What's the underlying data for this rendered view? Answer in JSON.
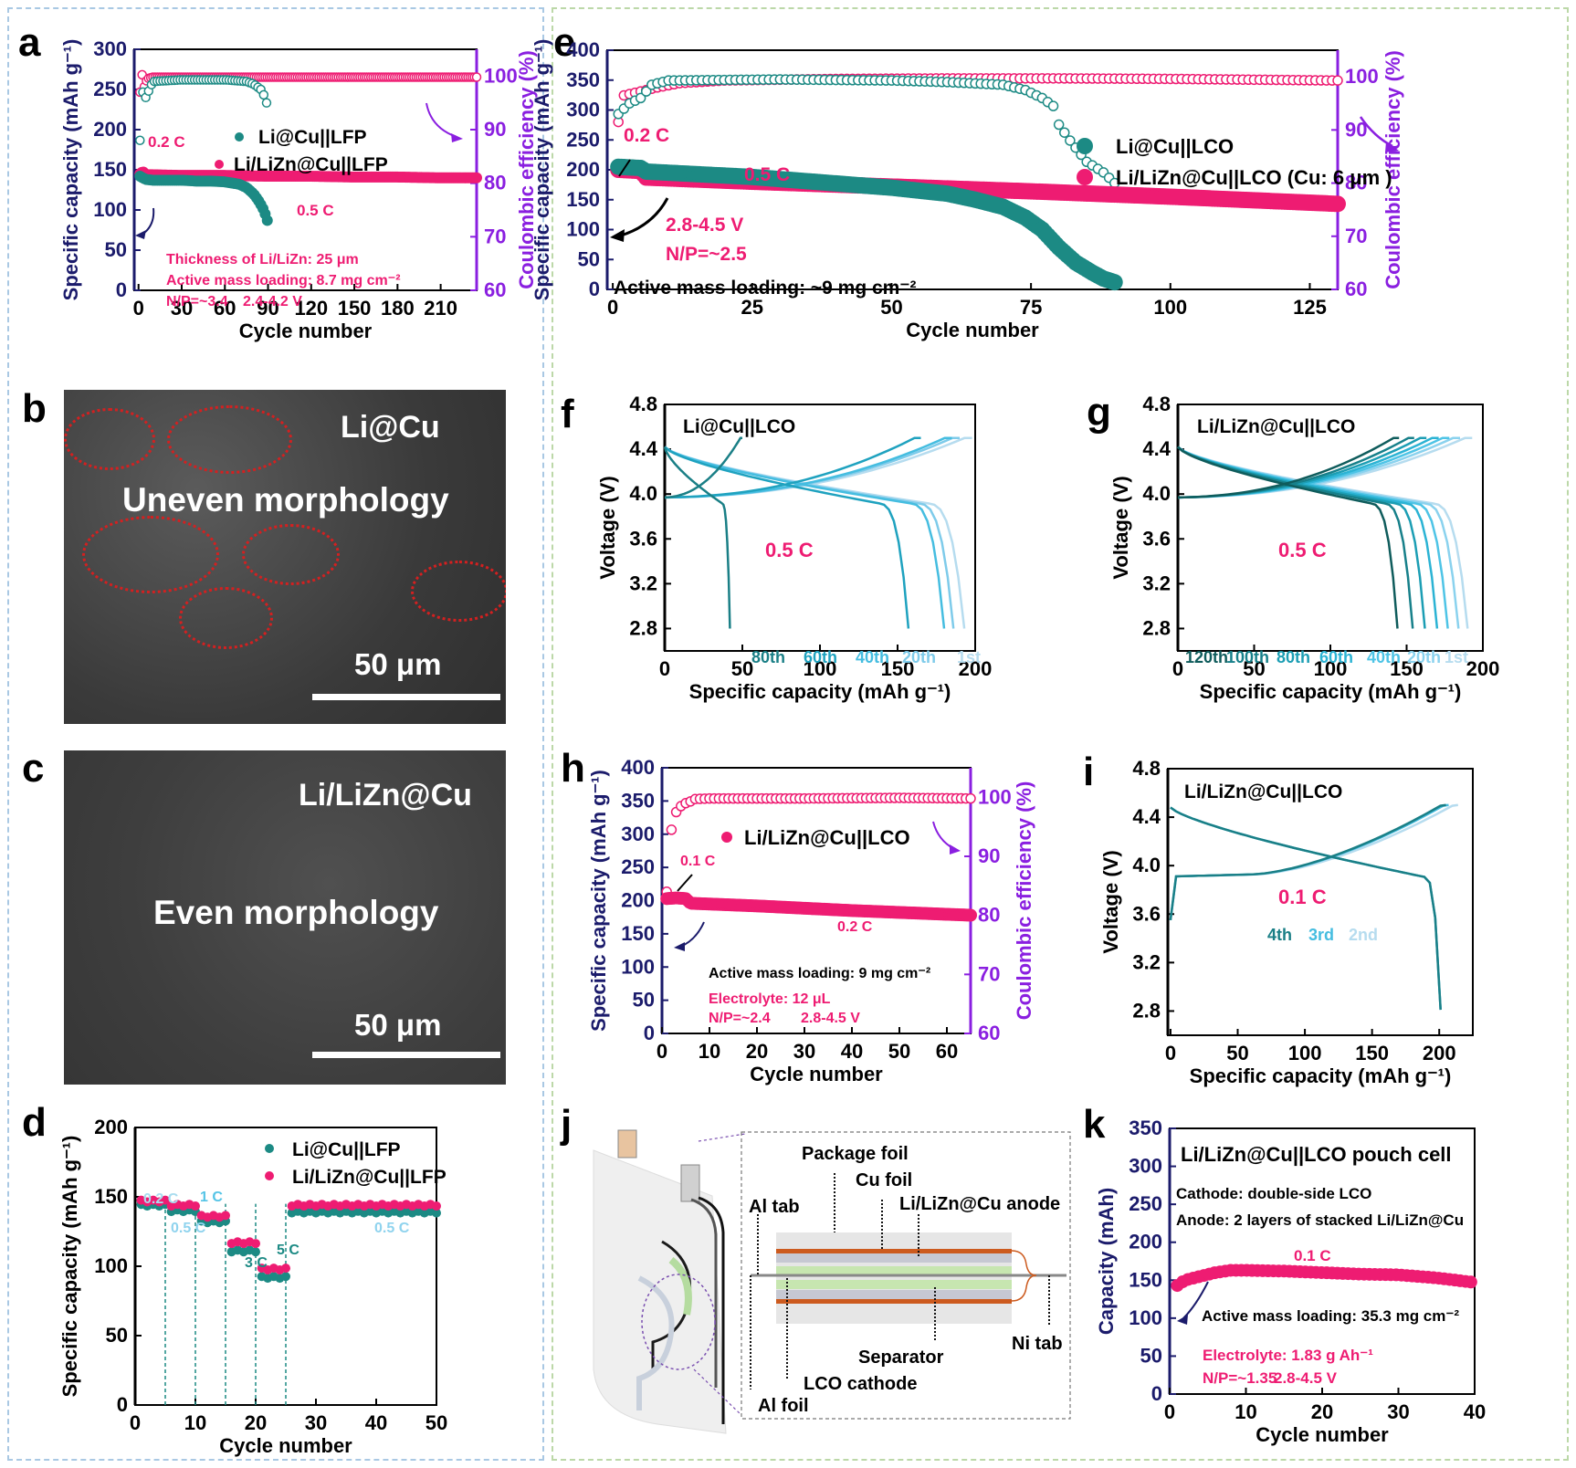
{
  "figure": {
    "panel_labels": {
      "a": "a",
      "b": "b",
      "c": "c",
      "d": "d",
      "e": "e",
      "f": "f",
      "g": "g",
      "h": "h",
      "i": "i",
      "j": "j",
      "k": "k"
    },
    "colors": {
      "navy": "#1b1b6b",
      "purple": "#8a1fe0",
      "pink": "#ee1c72",
      "teal": "#1c8a84",
      "black": "#000000",
      "red_dotted": "#d42020",
      "light_blue": "#8fd3ee"
    }
  },
  "panel_b": {
    "title": "Li@Cu",
    "caption": "Uneven morphology",
    "scale_label": "50 μm"
  },
  "panel_c": {
    "title": "Li/LiZn@Cu",
    "caption": "Even morphology",
    "scale_label": "50 μm"
  },
  "panel_j": {
    "labels": {
      "package_foil": "Package foil",
      "cu_foil": "Cu foil",
      "al_tab": "Al tab",
      "anode": "Li/LiZn@Cu anode",
      "separator": "Separator",
      "ni_tab": "Ni tab",
      "lco_cathode": "LCO cathode",
      "al_foil": "Al foil"
    }
  },
  "chart_data": [
    {
      "id": "a",
      "type": "scatter",
      "xlabel": "Cycle number",
      "ylabel": "Specific capacity (mAh g⁻¹)",
      "y2label": "Coulombic efficiency (%)",
      "xlim": [
        -3,
        235
      ],
      "ylim": [
        0,
        300
      ],
      "y2lim": [
        60,
        105
      ],
      "xticks": [
        0,
        30,
        60,
        90,
        120,
        150,
        180,
        210
      ],
      "yticks": [
        0,
        50,
        100,
        150,
        200,
        250,
        300
      ],
      "y2ticks": [
        60,
        70,
        80,
        90,
        100
      ],
      "legend": [
        "Li@Cu||LFP",
        "Li/LiZn@Cu||LFP"
      ],
      "legend_position": "center-right",
      "annotations": [
        "0.2 C",
        "0.5 C",
        "Thickness of Li/LiZn: 25 μm",
        "Active mass loading: 8.7 mg cm⁻²",
        "N/P=~3.4",
        "2.4-4.2 V"
      ],
      "series": [
        {
          "name": "Li@Cu||LFP capacity",
          "color": "#1c8a84",
          "x": [
            1,
            3,
            5,
            10,
            20,
            30,
            40,
            50,
            60,
            70,
            75,
            80,
            84,
            87,
            89,
            90
          ],
          "values": [
            142,
            140,
            138,
            137,
            137,
            137,
            136,
            136,
            135,
            132,
            128,
            120,
            110,
            100,
            90,
            84
          ]
        },
        {
          "name": "Li/LiZn@Cu||LFP capacity",
          "color": "#ee1c72",
          "x": [
            1,
            3,
            5,
            30,
            60,
            90,
            120,
            150,
            180,
            210,
            235
          ],
          "values": [
            145,
            148,
            144,
            143,
            143,
            142,
            142,
            141,
            141,
            140,
            140
          ]
        },
        {
          "name": "Li@Cu||LFP CE",
          "color": "#1c8a84",
          "x": [
            1,
            3,
            5,
            10,
            30,
            60,
            75,
            80,
            85,
            88,
            90
          ],
          "values": [
            88,
            97,
            96,
            99,
            99.3,
            99.3,
            99,
            98.5,
            97.5,
            96,
            94
          ]
        },
        {
          "name": "Li/LiZn@Cu||LFP CE",
          "color": "#ee1c72",
          "x": [
            1,
            2,
            4,
            6,
            10,
            60,
            120,
            180,
            235
          ],
          "values": [
            97,
            101,
            98,
            99.5,
            99.8,
            99.8,
            99.8,
            99.8,
            99.8
          ]
        }
      ]
    },
    {
      "id": "d",
      "type": "scatter",
      "xlabel": "Cycle number",
      "ylabel": "Specific capacity (mAh g⁻¹)",
      "xlim": [
        0,
        50
      ],
      "ylim": [
        0,
        200
      ],
      "xticks": [
        0,
        10,
        20,
        30,
        40,
        50
      ],
      "yticks": [
        0,
        50,
        100,
        150,
        200
      ],
      "legend": [
        "Li@Cu||LFP",
        "Li/LiZn@Cu||LFP"
      ],
      "legend_position": "top-right",
      "rate_labels": [
        "0.2 C",
        "0.5 C",
        "1 C",
        "3 C",
        "5 C",
        "0.5 C"
      ],
      "rate_boundaries": [
        5,
        10,
        15,
        20,
        25
      ],
      "series": [
        {
          "name": "Li@Cu||LFP",
          "color": "#1c8a84",
          "segments": [
            [
              1,
              5,
              144
            ],
            [
              6,
              10,
              140
            ],
            [
              11,
              15,
              132
            ],
            [
              16,
              20,
              111
            ],
            [
              21,
              25,
              92
            ],
            [
              26,
              50,
              139
            ]
          ]
        },
        {
          "name": "Li/LiZn@Cu||LFP",
          "color": "#ee1c72",
          "segments": [
            [
              1,
              5,
              147
            ],
            [
              6,
              10,
              144
            ],
            [
              11,
              15,
              136
            ],
            [
              16,
              20,
              117
            ],
            [
              21,
              25,
              98
            ],
            [
              26,
              50,
              144
            ]
          ]
        }
      ]
    },
    {
      "id": "e",
      "type": "scatter",
      "xlabel": "Cycle number",
      "ylabel": "Specific capacity (mAh g⁻¹)",
      "y2label": "Coulombic efficiency (%)",
      "xlim": [
        -1,
        130
      ],
      "ylim": [
        0,
        400
      ],
      "y2lim": [
        60,
        105
      ],
      "xticks": [
        0,
        25,
        50,
        75,
        100,
        125
      ],
      "yticks": [
        0,
        50,
        100,
        150,
        200,
        250,
        300,
        350,
        400
      ],
      "y2ticks": [
        60,
        70,
        80,
        90,
        100
      ],
      "legend": [
        "Li@Cu||LCO",
        "Li/LiZn@Cu||LCO (Cu: 6 μm )"
      ],
      "legend_position": "center-right",
      "annotations": [
        "0.2 C",
        "0.5 C",
        "2.8-4.5 V",
        "N/P=~2.5",
        "Active mass loading: ~9 mg cm⁻²"
      ],
      "series": [
        {
          "name": "Li@Cu||LCO capacity",
          "color": "#1c8a84",
          "x": [
            1,
            5,
            6,
            25,
            50,
            60,
            65,
            70,
            74,
            77,
            80,
            83,
            86,
            88,
            90
          ],
          "values": [
            205,
            203,
            197,
            188,
            170,
            160,
            150,
            138,
            120,
            100,
            70,
            45,
            28,
            18,
            12
          ]
        },
        {
          "name": "Li/LiZn@Cu||LCO capacity",
          "color": "#ee1c72",
          "x": [
            1,
            5,
            6,
            25,
            50,
            75,
            100,
            130
          ],
          "values": [
            200,
            198,
            187,
            180,
            172,
            164,
            155,
            143
          ]
        },
        {
          "name": "Li@Cu||LCO CE",
          "color": "#1c8a84",
          "x": [
            1,
            3,
            5,
            7,
            10,
            30,
            50,
            60,
            70,
            74,
            77,
            79,
            80,
            82,
            85,
            88,
            90
          ],
          "values": [
            93,
            95,
            96,
            98.5,
            99.3,
            99.5,
            99.3,
            99,
            98.5,
            97.5,
            96,
            94.5,
            91,
            88,
            84,
            82,
            80
          ]
        },
        {
          "name": "Li/LiZn@Cu||LCO CE",
          "color": "#ee1c72",
          "x": [
            1,
            2,
            4,
            6,
            8,
            12,
            20,
            40,
            60,
            80,
            100,
            120,
            130
          ],
          "values": [
            91.5,
            96.5,
            97,
            97.5,
            98,
            98.8,
            99.3,
            99.6,
            99.7,
            99.7,
            99.6,
            99.4,
            99.3
          ]
        }
      ]
    },
    {
      "id": "f",
      "type": "line",
      "title": "Li@Cu||LCO",
      "xlabel": "Specific capacity (mAh g⁻¹)",
      "ylabel": "Voltage (V)",
      "xlim": [
        0,
        200
      ],
      "ylim": [
        2.6,
        4.8
      ],
      "xticks": [
        0,
        50,
        100,
        150,
        200
      ],
      "yticks": [
        2.8,
        3.2,
        3.6,
        4.0,
        4.4,
        4.8
      ],
      "annotations": [
        "0.5 C"
      ],
      "cycle_labels": [
        "80th",
        "60th",
        "40th",
        "20th",
        "1st"
      ],
      "series": [
        {
          "name": "1st",
          "color": "#b6dcef",
          "charge_cap": 198,
          "discharge_cap": 193
        },
        {
          "name": "20th",
          "color": "#7ecbea",
          "charge_cap": 190,
          "discharge_cap": 186
        },
        {
          "name": "40th",
          "color": "#45bde0",
          "charge_cap": 185,
          "discharge_cap": 180
        },
        {
          "name": "60th",
          "color": "#1fa2bf",
          "charge_cap": 165,
          "discharge_cap": 157
        },
        {
          "name": "80th",
          "color": "#1a7f86",
          "charge_cap": 50,
          "discharge_cap": 42
        }
      ]
    },
    {
      "id": "g",
      "type": "line",
      "title": "Li/LiZn@Cu||LCO",
      "xlabel": "Specific capacity (mAh g⁻¹)",
      "ylabel": "Voltage (V)",
      "xlim": [
        0,
        200
      ],
      "ylim": [
        2.6,
        4.8
      ],
      "xticks": [
        0,
        50,
        100,
        150,
        200
      ],
      "yticks": [
        2.8,
        3.2,
        3.6,
        4.0,
        4.4,
        4.8
      ],
      "annotations": [
        "0.5 C"
      ],
      "cycle_labels": [
        "120th",
        "100th",
        "80th",
        "60th",
        "40th",
        "20th",
        "1st"
      ],
      "series": [
        {
          "name": "1st",
          "color": "#b6dcef",
          "charge_cap": 193,
          "discharge_cap": 190
        },
        {
          "name": "20th",
          "color": "#8ad2ee",
          "charge_cap": 185,
          "discharge_cap": 184
        },
        {
          "name": "40th",
          "color": "#4ec4e6",
          "charge_cap": 178,
          "discharge_cap": 177
        },
        {
          "name": "60th",
          "color": "#2bb3d4",
          "charge_cap": 171,
          "discharge_cap": 170
        },
        {
          "name": "80th",
          "color": "#1c9eb4",
          "charge_cap": 163,
          "discharge_cap": 162
        },
        {
          "name": "100th",
          "color": "#17808a",
          "charge_cap": 155,
          "discharge_cap": 154
        },
        {
          "name": "120th",
          "color": "#0f5c5c",
          "charge_cap": 145,
          "discharge_cap": 144
        }
      ]
    },
    {
      "id": "h",
      "type": "scatter",
      "xlabel": "Cycle number",
      "ylabel": "Specific capacity (mAh g⁻¹)",
      "y2label": "Coulombic efficiency (%)",
      "xlim": [
        0,
        65
      ],
      "ylim": [
        0,
        400
      ],
      "y2lim": [
        60,
        105
      ],
      "xticks": [
        0,
        10,
        20,
        30,
        40,
        50,
        60
      ],
      "yticks": [
        0,
        50,
        100,
        150,
        200,
        250,
        300,
        350,
        400
      ],
      "y2ticks": [
        60,
        70,
        80,
        90,
        100
      ],
      "legend": [
        "Li/LiZn@Cu||LCO"
      ],
      "legend_position": "top-center",
      "annotations": [
        "0.1 C",
        "0.2 C",
        "Active mass loading: 9 mg cm⁻²",
        "Electrolyte: 12 μL",
        "N/P=~2.4",
        "2.8-4.5 V"
      ],
      "series": [
        {
          "name": "capacity",
          "color": "#ee1c72",
          "x": [
            1,
            3,
            5,
            6,
            20,
            40,
            65
          ],
          "values": [
            203,
            204,
            203,
            196,
            192,
            185,
            178
          ]
        },
        {
          "name": "CE",
          "color": "#ee1c72",
          "x": [
            1,
            2,
            3,
            4,
            5,
            6,
            7,
            10,
            30,
            50,
            65
          ],
          "values": [
            84,
            94.5,
            97.5,
            98.5,
            99,
            99.3,
            99.7,
            99.8,
            99.8,
            99.9,
            99.8
          ]
        }
      ]
    },
    {
      "id": "i",
      "type": "line",
      "title": "Li/LiZn@Cu||LCO",
      "xlabel": "Specific capacity (mAh g⁻¹)",
      "ylabel": "Voltage (V)",
      "xlim": [
        -2,
        225
      ],
      "ylim": [
        2.6,
        4.8
      ],
      "xticks": [
        0,
        50,
        100,
        150,
        200
      ],
      "yticks": [
        2.8,
        3.2,
        3.6,
        4.0,
        4.4,
        4.8
      ],
      "annotations": [
        "0.1 C"
      ],
      "cycle_labels": [
        "4th",
        "3rd",
        "2nd"
      ],
      "series": [
        {
          "name": "2nd",
          "color": "#b6dcef",
          "charge_cap": 214,
          "discharge_cap": 201
        },
        {
          "name": "3rd",
          "color": "#45bde0",
          "charge_cap": 207,
          "discharge_cap": 201
        },
        {
          "name": "4th",
          "color": "#1a7f86",
          "charge_cap": 205,
          "discharge_cap": 201
        }
      ]
    },
    {
      "id": "k",
      "type": "scatter",
      "title": "Li/LiZn@Cu||LCO pouch cell",
      "xlabel": "Cycle number",
      "ylabel": "Capacity (mAh)",
      "xlim": [
        0,
        40
      ],
      "ylim": [
        0,
        350
      ],
      "xticks": [
        0,
        10,
        20,
        30,
        40
      ],
      "yticks": [
        0,
        50,
        100,
        150,
        200,
        250,
        300,
        350
      ],
      "annotations": [
        "Cathode: double-side LCO",
        "Anode: 2 layers of stacked Li/LiZn@Cu",
        "0.1 C",
        "Active mass loading: 35.3 mg cm⁻²",
        "Electrolyte: 1.83 g Ah⁻¹",
        "N/P=~1.35",
        "2.8-4.5 V"
      ],
      "series": [
        {
          "name": "capacity",
          "color": "#ee1c72",
          "x": [
            1,
            2,
            4,
            6,
            8,
            10,
            15,
            20,
            25,
            30,
            35,
            40
          ],
          "values": [
            143,
            150,
            155,
            160,
            163,
            163,
            162,
            160,
            158,
            157,
            153,
            147
          ]
        }
      ]
    }
  ]
}
